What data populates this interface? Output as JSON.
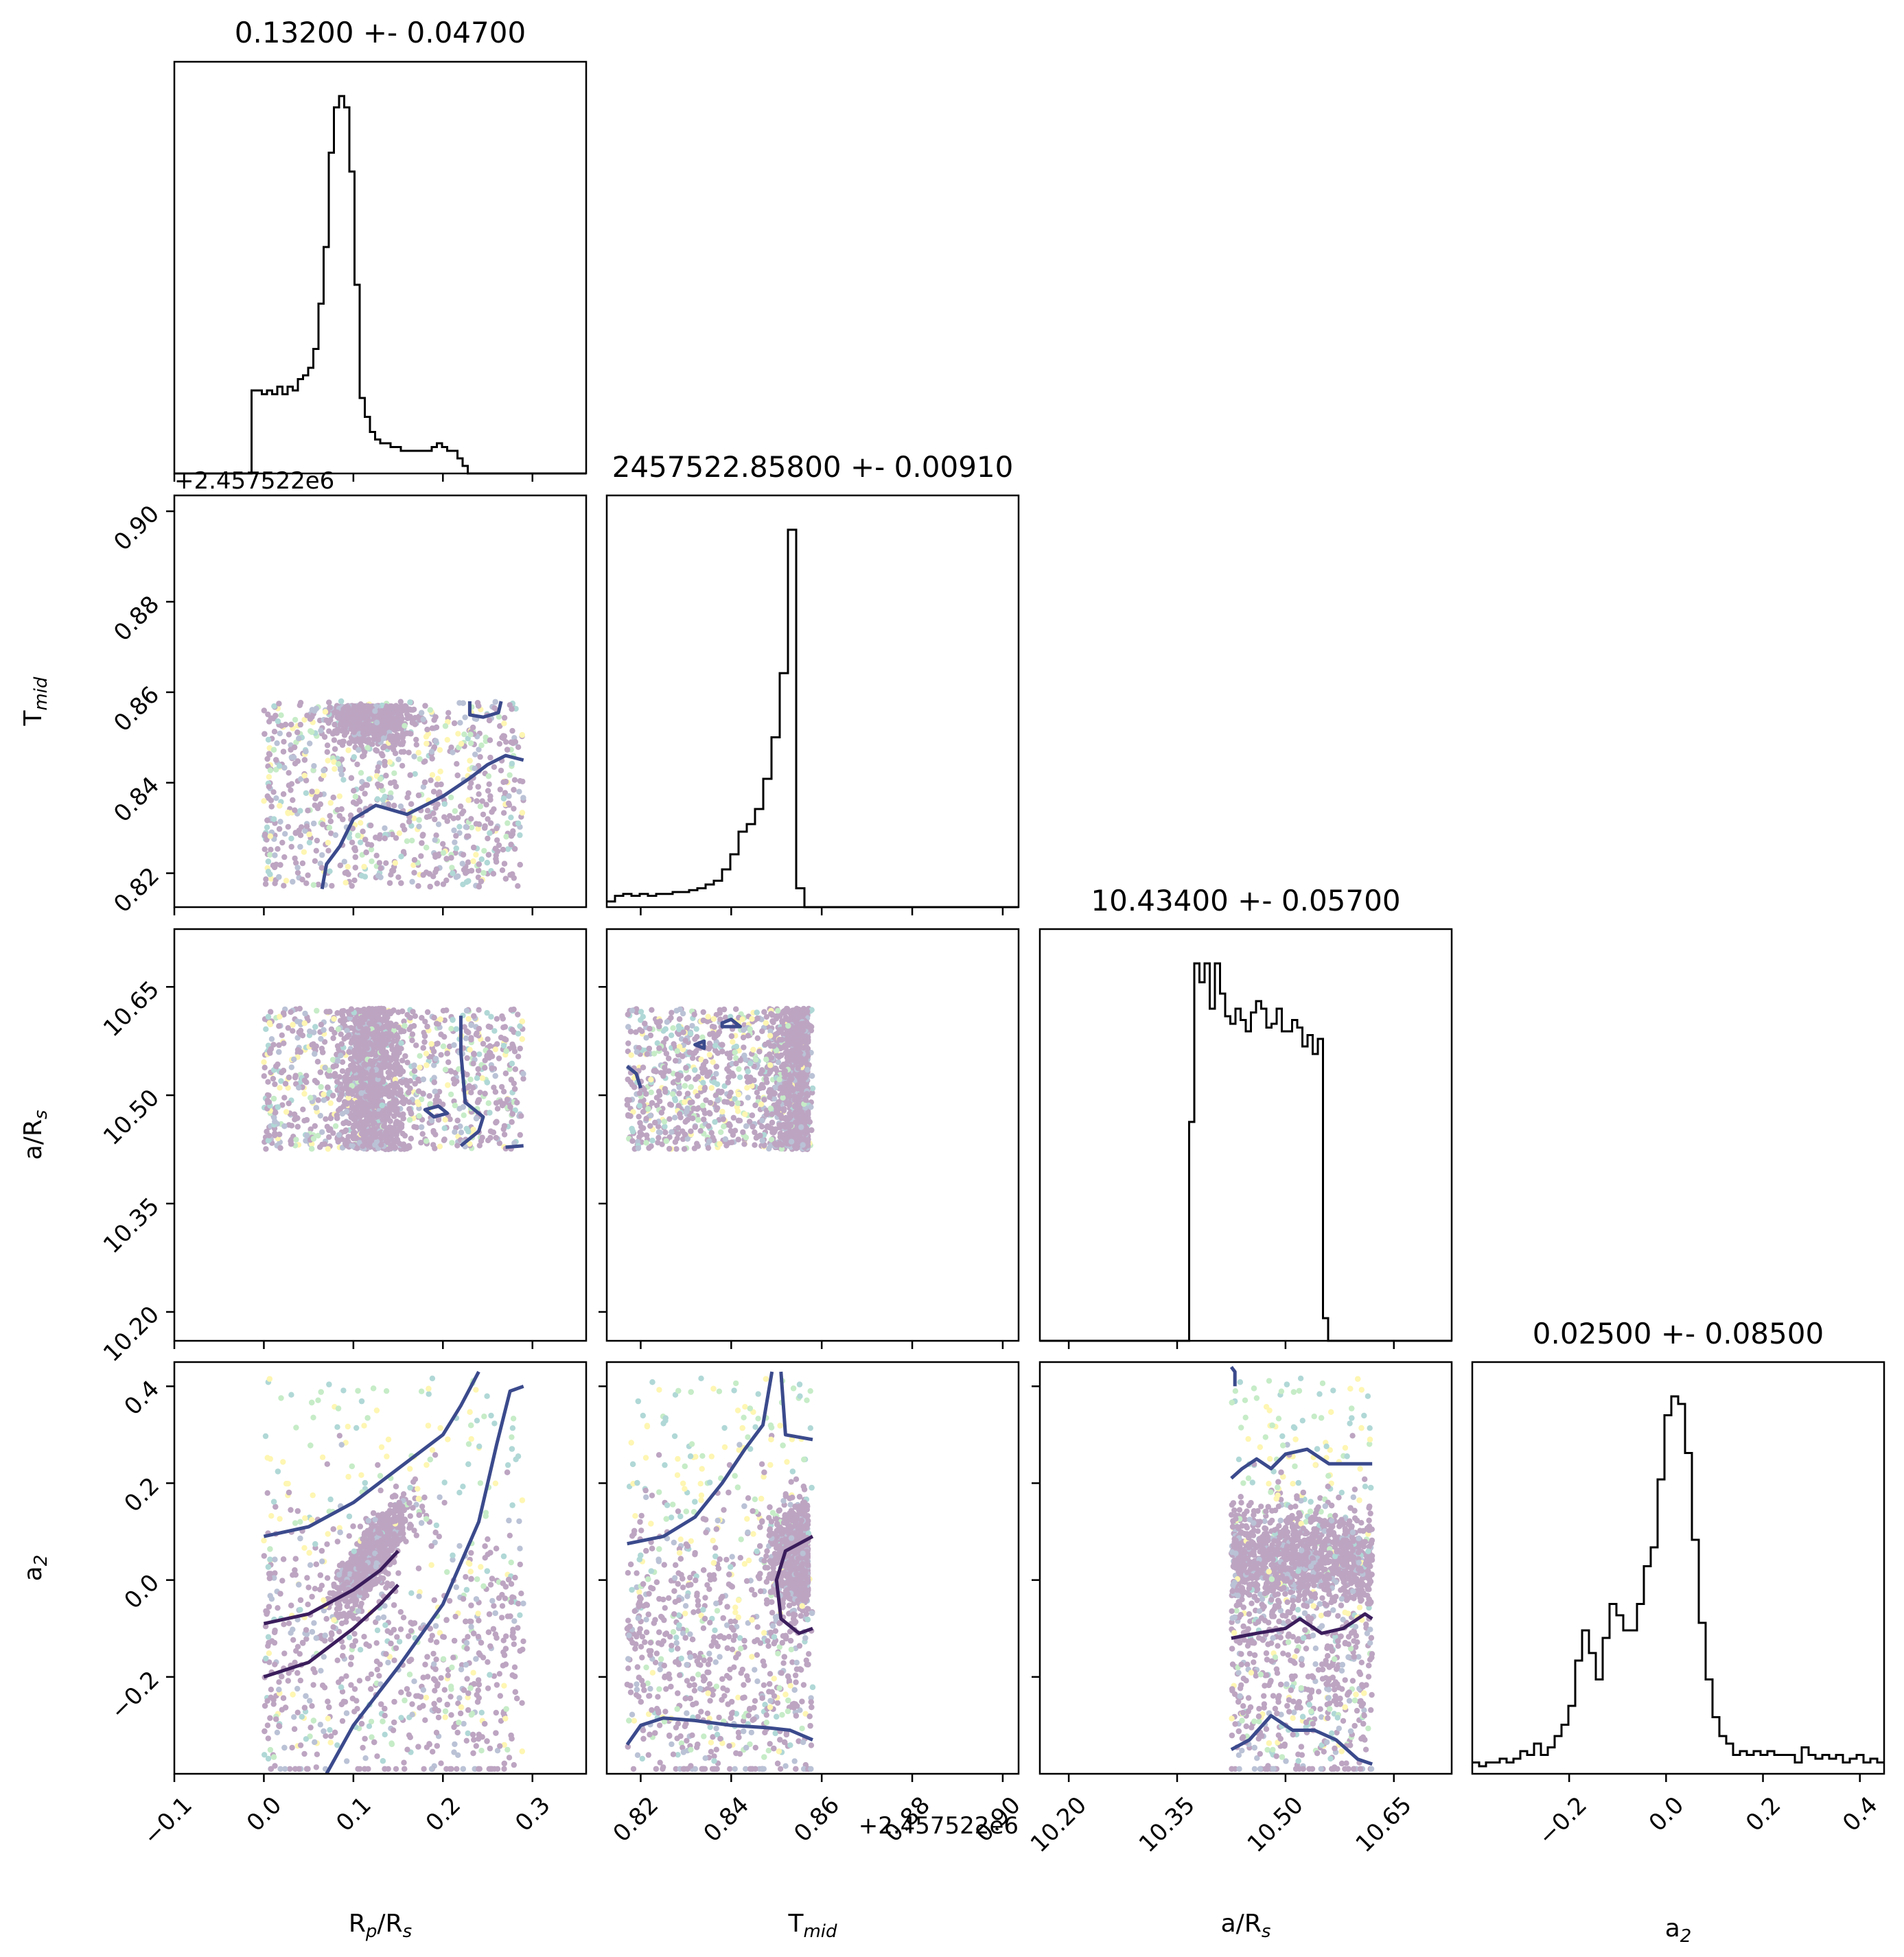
{
  "figure": {
    "type": "corner_plot",
    "parameters": [
      "R_p/R_s",
      "T_mid",
      "a/R_s",
      "a_2"
    ]
  },
  "chart_data": {
    "type": "corner",
    "titles": [
      "0.13200 +- 0.04700",
      "2457522.85800 +- 0.00910",
      "10.43400 +- 0.05700",
      "0.02500 +- 0.08500"
    ],
    "axis_labels": {
      "x": [
        "R$_p$/R$_s$",
        "T$_{mid}$",
        "a/R$_s$",
        "$a_2$"
      ],
      "x_rendered": [
        [
          "R",
          "p",
          "/R",
          "s"
        ],
        [
          "T",
          "mid",
          "",
          ""
        ],
        [
          "a/R",
          "s",
          "",
          ""
        ],
        [
          "a",
          "2",
          "",
          ""
        ]
      ],
      "y_rendered": [
        [
          "T",
          "mid",
          "",
          ""
        ],
        [
          "a/R",
          "s",
          "",
          ""
        ],
        [
          "a",
          "2",
          "",
          ""
        ]
      ]
    },
    "offset_labels": {
      "tmid_y": "+2.457522e6",
      "tmid_x": "+2.457522e6"
    },
    "ranges": {
      "rp": [
        -0.1,
        0.36
      ],
      "tmid": [
        0.8125,
        0.9035
      ],
      "ars": [
        10.16,
        10.73
      ],
      "a2": [
        -0.4,
        0.45
      ]
    },
    "ticks": {
      "rp": {
        "values": [
          -0.1,
          0.0,
          0.1,
          0.2,
          0.3
        ],
        "labels": [
          "−0.1",
          "0.0",
          "0.1",
          "0.2",
          "0.3"
        ]
      },
      "tmid": {
        "values": [
          0.82,
          0.84,
          0.86,
          0.88,
          0.9
        ],
        "labels": [
          "0.82",
          "0.84",
          "0.86",
          "0.88",
          "0.90"
        ]
      },
      "ars": {
        "values": [
          10.2,
          10.35,
          10.5,
          10.65
        ],
        "labels": [
          "10.20",
          "10.35",
          "10.50",
          "10.65"
        ]
      },
      "a2": {
        "values": [
          -0.2,
          0.0,
          0.2,
          0.4
        ],
        "labels": [
          "−0.2",
          "0.0",
          "0.2",
          "0.4"
        ]
      }
    },
    "histograms": {
      "rp": {
        "edges_range": [
          -0.1,
          0.36
        ],
        "counts": [
          0,
          0,
          0,
          0,
          0,
          0,
          0,
          0,
          0,
          0,
          0,
          0,
          0,
          0,
          0,
          0.22,
          0.22,
          0.21,
          0.22,
          0.21,
          0.23,
          0.21,
          0.23,
          0.22,
          0.25,
          0.26,
          0.28,
          0.33,
          0.45,
          0.6,
          0.85,
          0.97,
          1.0,
          0.97,
          0.8,
          0.5,
          0.2,
          0.15,
          0.11,
          0.09,
          0.08,
          0.08,
          0.07,
          0.07,
          0.06,
          0.06,
          0.06,
          0.06,
          0.06,
          0.06,
          0.07,
          0.08,
          0.07,
          0.06,
          0.06,
          0.04,
          0.02,
          0,
          0,
          0,
          0,
          0,
          0,
          0,
          0,
          0,
          0,
          0,
          0,
          0,
          0,
          0,
          0,
          0,
          0,
          0,
          0,
          0,
          0,
          0
        ]
      },
      "tmid": {
        "edges_range": [
          0.8125,
          0.9035
        ],
        "counts": [
          0.015,
          0.03,
          0.035,
          0.03,
          0.035,
          0.03,
          0.035,
          0.035,
          0.04,
          0.04,
          0.045,
          0.05,
          0.06,
          0.07,
          0.1,
          0.14,
          0.2,
          0.22,
          0.26,
          0.34,
          0.45,
          0.62,
          1.0,
          0.05,
          0,
          0,
          0,
          0,
          0,
          0,
          0,
          0,
          0,
          0,
          0,
          0,
          0,
          0,
          0,
          0,
          0,
          0,
          0,
          0,
          0,
          0,
          0,
          0,
          0,
          0
        ]
      },
      "ars": {
        "edges_range": [
          10.16,
          10.73
        ],
        "counts": [
          0,
          0,
          0,
          0,
          0,
          0,
          0,
          0,
          0,
          0,
          0,
          0,
          0,
          0,
          0,
          0,
          0,
          0,
          0,
          0,
          0,
          0,
          0,
          0,
          0,
          0,
          0,
          0,
          0,
          0.58,
          1.0,
          0.95,
          1.0,
          0.88,
          1.0,
          0.92,
          0.86,
          0.84,
          0.88,
          0.85,
          0.82,
          0.87,
          0.9,
          0.88,
          0.83,
          0.84,
          0.88,
          0.82,
          0.82,
          0.85,
          0.83,
          0.78,
          0.81,
          0.76,
          0.8,
          0.06,
          0,
          0,
          0,
          0,
          0,
          0,
          0,
          0,
          0,
          0,
          0,
          0,
          0,
          0,
          0,
          0,
          0,
          0,
          0,
          0,
          0,
          0,
          0,
          0
        ]
      },
      "a2": {
        "edges_range": [
          -0.4,
          0.45
        ],
        "counts": [
          0.03,
          0.02,
          0.03,
          0.03,
          0.04,
          0.03,
          0.04,
          0.06,
          0.05,
          0.08,
          0.05,
          0.07,
          0.1,
          0.13,
          0.18,
          0.3,
          0.38,
          0.32,
          0.25,
          0.36,
          0.45,
          0.42,
          0.38,
          0.38,
          0.45,
          0.55,
          0.6,
          0.78,
          0.95,
          1.0,
          0.98,
          0.85,
          0.62,
          0.4,
          0.25,
          0.15,
          0.1,
          0.08,
          0.05,
          0.06,
          0.05,
          0.06,
          0.05,
          0.06,
          0.05,
          0.05,
          0.05,
          0.03,
          0.07,
          0.05,
          0.04,
          0.05,
          0.04,
          0.05,
          0.03,
          0.04,
          0.05,
          0.03,
          0.04,
          0.03
        ]
      }
    },
    "colors": {
      "hist_line": "#000000",
      "contour_outer": "#3b4a8c",
      "contour_inner": "#3b1d5c",
      "scatter": [
        "#440154",
        "#3b528b",
        "#21918c",
        "#5ec962",
        "#fde725"
      ]
    }
  }
}
